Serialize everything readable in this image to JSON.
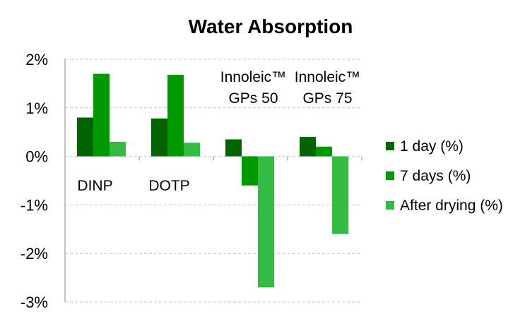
{
  "chart_data": {
    "type": "bar",
    "title": "Water Absorption",
    "xlabel": "",
    "ylabel": "",
    "categories": [
      [
        "DINP"
      ],
      [
        "DOTP"
      ],
      [
        "Innoleic™",
        "GPs 50"
      ],
      [
        "Innoleic™",
        "GPs 75"
      ]
    ],
    "series": [
      {
        "name": "1 day (%)",
        "color": "#006400",
        "values": [
          0.8,
          0.78,
          0.35,
          0.4
        ]
      },
      {
        "name": "7 days (%)",
        "color": "#009a00",
        "values": [
          1.7,
          1.68,
          -0.6,
          0.2
        ]
      },
      {
        "name": "After drying (%)",
        "color": "#33bb44",
        "values": [
          0.3,
          0.28,
          -2.7,
          -1.6
        ]
      }
    ],
    "ylim": [
      -3,
      2
    ],
    "yticks": [
      2,
      1,
      0,
      -1,
      -2,
      -3
    ],
    "ytick_labels": [
      "2%",
      "1%",
      "0%",
      "-1%",
      "-2%",
      "-3%"
    ],
    "grid": true,
    "legend_position": "right"
  }
}
